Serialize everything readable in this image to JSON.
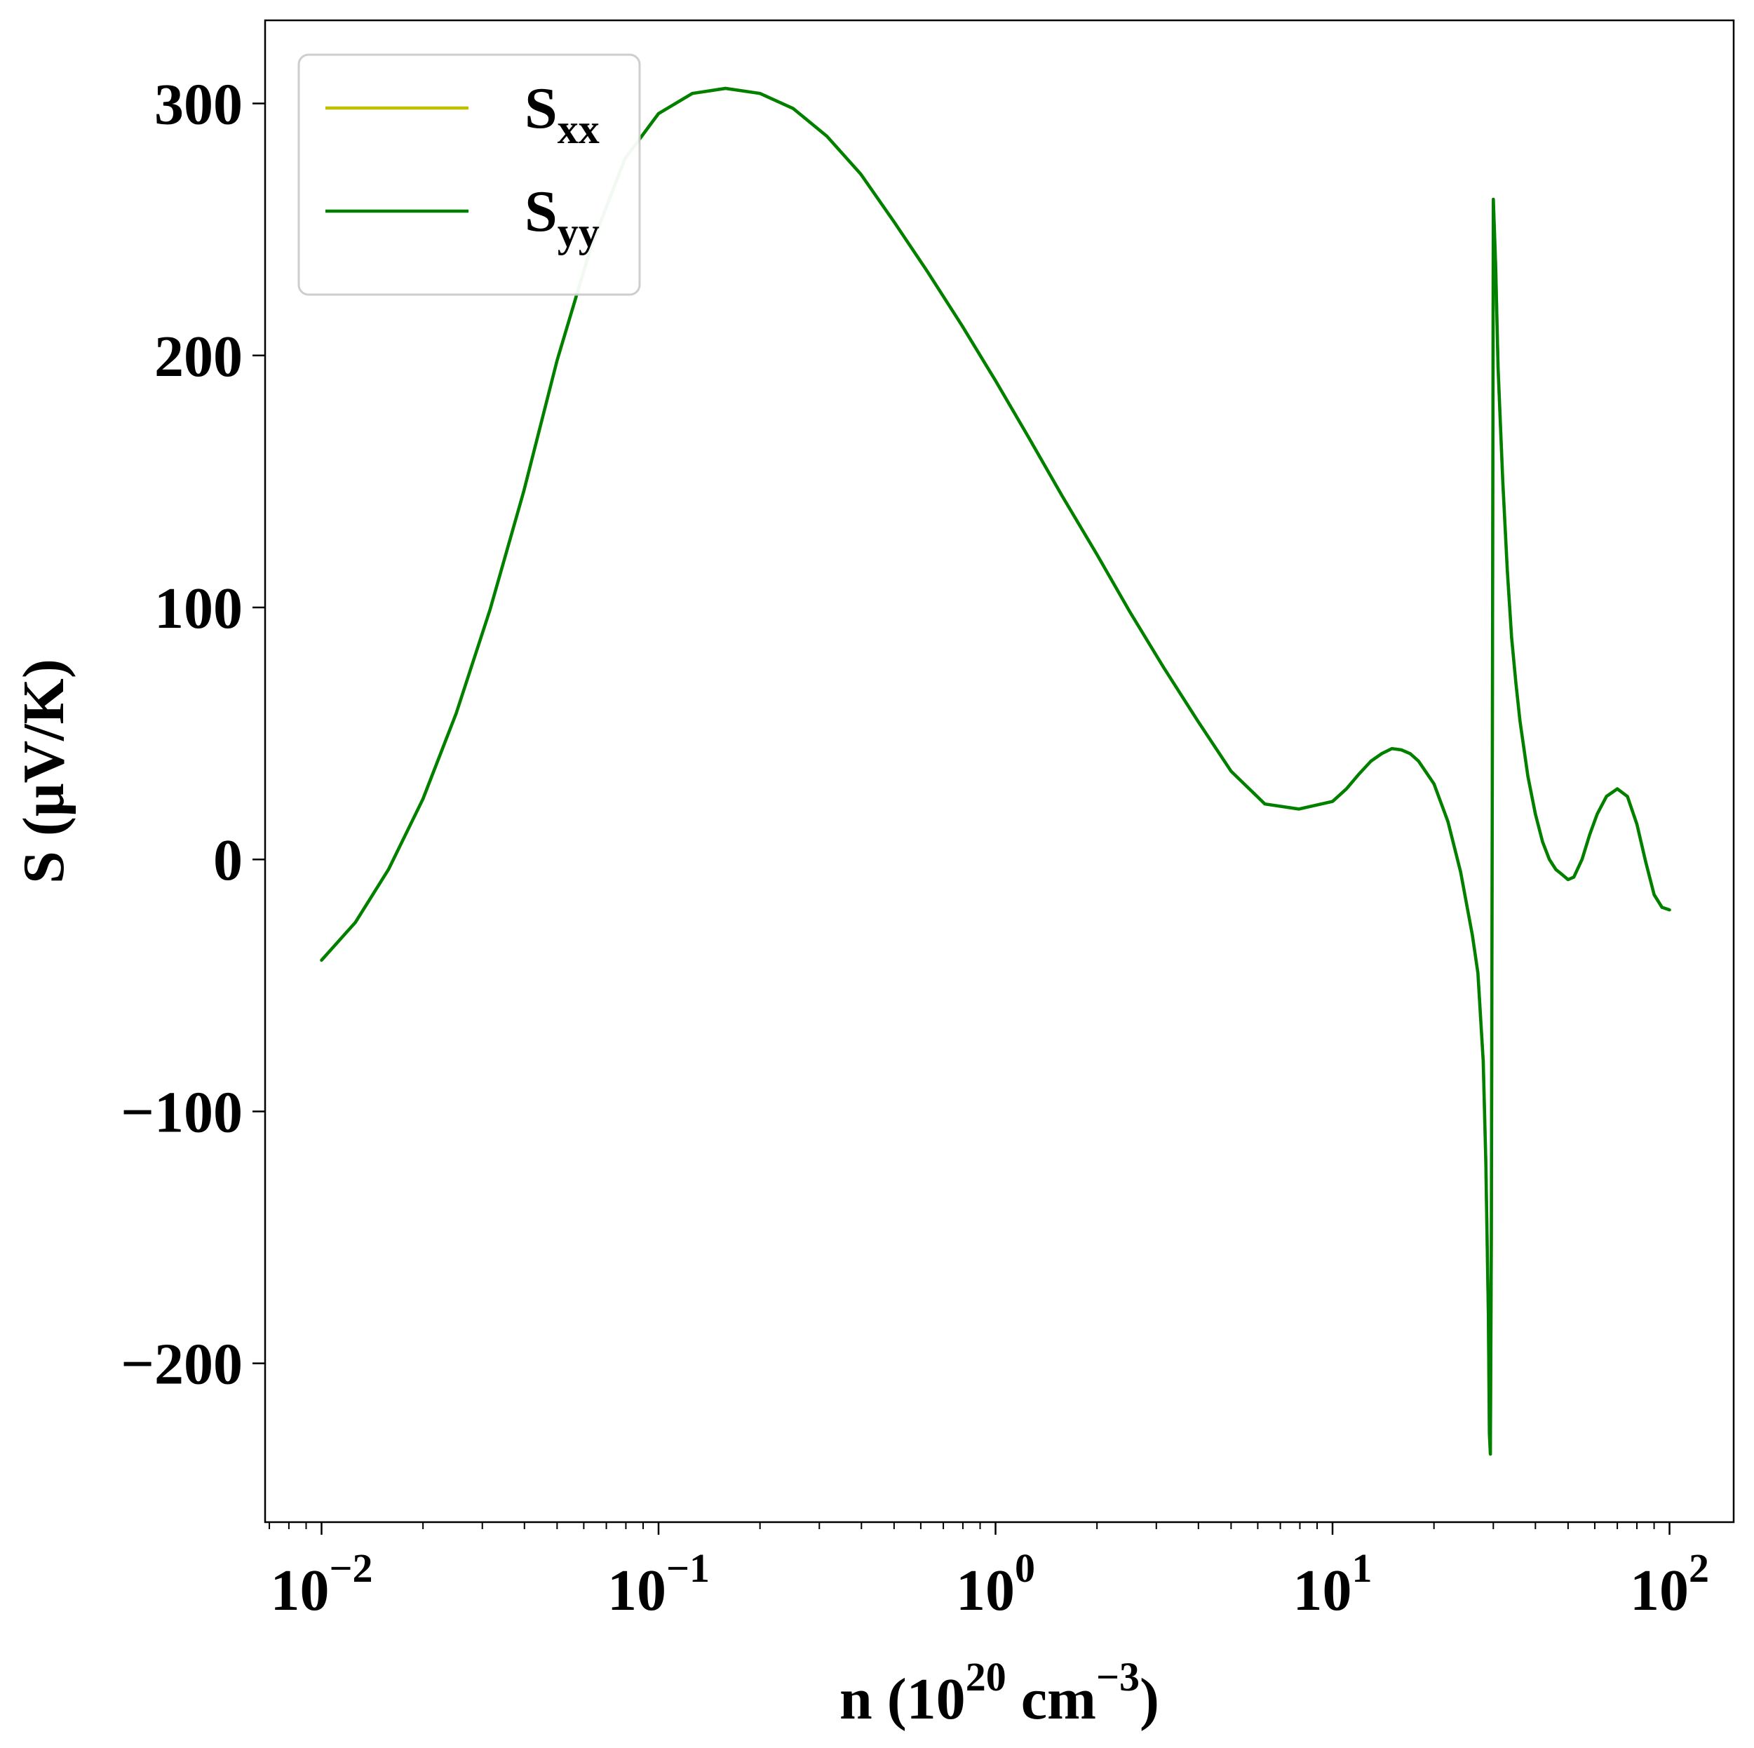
{
  "chart_data": {
    "type": "line",
    "xscale": "log",
    "xlabel": {
      "base": "n (10",
      "sup1": "20",
      "mid": " cm",
      "sup2": "−3",
      "end": ")"
    },
    "ylabel": "S (μV/K)",
    "xlim": [
      0.0068,
      155
    ],
    "ylim": [
      -263,
      333
    ],
    "x_ticks": [
      {
        "value": 0.01,
        "base": "10",
        "exp": "−2"
      },
      {
        "value": 0.1,
        "base": "10",
        "exp": "−1"
      },
      {
        "value": 1,
        "base": "10",
        "exp": "0"
      },
      {
        "value": 10,
        "base": "10",
        "exp": "1"
      },
      {
        "value": 100,
        "base": "10",
        "exp": "2"
      }
    ],
    "y_ticks": [
      {
        "value": 300,
        "label": "300"
      },
      {
        "value": 200,
        "label": "200"
      },
      {
        "value": 100,
        "label": "100"
      },
      {
        "value": 0,
        "label": "0"
      },
      {
        "value": -100,
        "label": "−100"
      },
      {
        "value": -200,
        "label": "−200"
      }
    ],
    "grid": false,
    "legend": {
      "position": "top-left",
      "entries": [
        {
          "main": "S",
          "sub": "xx",
          "color": "#bfbf00"
        },
        {
          "main": "S",
          "sub": "yy",
          "color": "#008000"
        }
      ]
    },
    "series": [
      {
        "name": "Sxx",
        "color": "#bfbf00",
        "x": [
          0.01,
          0.0126,
          0.0158,
          0.02,
          0.0251,
          0.0316,
          0.0398,
          0.05,
          0.063,
          0.0794,
          0.1,
          0.126,
          0.158,
          0.2,
          0.251,
          0.316,
          0.398,
          0.5,
          0.63,
          0.794,
          1,
          1.26,
          1.58,
          2,
          2.51,
          3.16,
          3.98,
          5,
          6.3,
          7.94,
          10,
          11,
          12,
          13,
          14,
          15,
          16,
          17,
          18,
          20,
          22,
          24,
          26,
          27,
          28,
          28.5,
          29,
          29.2,
          29.4,
          29.6,
          29.8,
          30,
          30.5,
          31,
          32,
          33,
          34,
          35,
          36,
          38,
          40,
          42,
          44,
          46,
          48,
          50,
          52,
          55,
          58,
          61,
          65,
          70,
          75,
          80,
          85,
          90,
          95,
          100
        ],
        "y": [
          -40,
          -25,
          -4,
          24,
          58,
          99,
          146,
          198,
          243,
          278,
          296,
          304,
          306,
          304,
          298,
          287,
          272,
          253,
          233,
          212,
          190,
          167,
          144,
          121,
          98,
          76,
          55,
          35,
          22,
          20,
          23,
          28,
          34,
          39,
          42,
          44,
          43.5,
          42,
          39,
          30,
          15,
          -5,
          -30,
          -45,
          -80,
          -120,
          -180,
          -228,
          -236,
          -150,
          40,
          262,
          235,
          195,
          150,
          115,
          88,
          70,
          55,
          33,
          18,
          7,
          0,
          -4,
          -6,
          -8,
          -7,
          0,
          10,
          18,
          25,
          28,
          25,
          14,
          -1,
          -14,
          -19,
          -20
        ]
      },
      {
        "name": "Syy",
        "color": "#008000",
        "x": [
          0.01,
          0.0126,
          0.0158,
          0.02,
          0.0251,
          0.0316,
          0.0398,
          0.05,
          0.063,
          0.0794,
          0.1,
          0.126,
          0.158,
          0.2,
          0.251,
          0.316,
          0.398,
          0.5,
          0.63,
          0.794,
          1,
          1.26,
          1.58,
          2,
          2.51,
          3.16,
          3.98,
          5,
          6.3,
          7.94,
          10,
          11,
          12,
          13,
          14,
          15,
          16,
          17,
          18,
          20,
          22,
          24,
          26,
          27,
          28,
          28.5,
          29,
          29.2,
          29.4,
          29.6,
          29.8,
          30,
          30.5,
          31,
          32,
          33,
          34,
          35,
          36,
          38,
          40,
          42,
          44,
          46,
          48,
          50,
          52,
          55,
          58,
          61,
          65,
          70,
          75,
          80,
          85,
          90,
          95,
          100
        ],
        "y": [
          -40,
          -25,
          -4,
          24,
          58,
          99,
          146,
          198,
          243,
          278,
          296,
          304,
          306,
          304,
          298,
          287,
          272,
          253,
          233,
          212,
          190,
          167,
          144,
          121,
          98,
          76,
          55,
          35,
          22,
          20,
          23,
          28,
          34,
          39,
          42,
          44,
          43.5,
          42,
          39,
          30,
          15,
          -5,
          -30,
          -45,
          -80,
          -120,
          -180,
          -228,
          -236,
          -150,
          40,
          262,
          235,
          195,
          150,
          115,
          88,
          70,
          55,
          33,
          18,
          7,
          0,
          -4,
          -6,
          -8,
          -7,
          0,
          10,
          18,
          25,
          28,
          25,
          14,
          -1,
          -14,
          -19,
          -20
        ]
      }
    ]
  }
}
